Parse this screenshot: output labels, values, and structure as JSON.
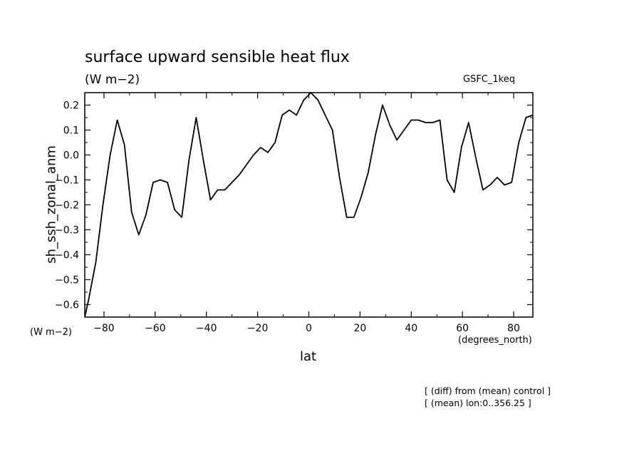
{
  "header": {
    "title": "surface upward sensible heat flux",
    "units": "(W m−2)",
    "run": "GSFC_1keq"
  },
  "axes": {
    "ylabel": "sh_ssh_zonal_anm",
    "xlabel": "lat",
    "y_units": "(W m−2)",
    "x_units": "(degrees_north)"
  },
  "notes": [
    "[ (diff) from (mean) control ]",
    "[ (mean) lon:0..356.25 ]"
  ],
  "chart_data": {
    "type": "line",
    "title": "surface upward sensible heat flux",
    "xlabel": "lat",
    "ylabel": "sh_ssh_zonal_anm",
    "xlim": [
      -87.5,
      87.5
    ],
    "ylim": [
      -0.65,
      0.25
    ],
    "x_ticks": [
      -80,
      -60,
      -40,
      -20,
      0,
      20,
      40,
      60,
      80
    ],
    "x_tick_labels": [
      "−80",
      "−60",
      "−40",
      "−20",
      "0",
      "20",
      "40",
      "60",
      "80"
    ],
    "y_ticks": [
      0.2,
      0.1,
      0.0,
      -0.1,
      -0.2,
      -0.3,
      -0.4,
      -0.5,
      -0.6
    ],
    "y_tick_labels": [
      "0.2",
      "0.1",
      "0.0",
      "−0.1",
      "−0.2",
      "−0.3",
      "−0.4",
      "−0.5",
      "−0.6"
    ],
    "grid": false,
    "line_color": "#000000",
    "series": [
      {
        "x": [
          -87.5,
          -86,
          -83.2,
          -80.4,
          -77.6,
          -74.8,
          -72,
          -69.2,
          -66.4,
          -63.6,
          -60.8,
          -58,
          -55.2,
          -52.4,
          -49.6,
          -46.8,
          -44,
          -41.2,
          -38.4,
          -35.6,
          -32.8,
          -30,
          -27.2,
          -24.4,
          -21.6,
          -18.8,
          -16,
          -13.2,
          -10.4,
          -7.6,
          -4.8,
          -2,
          0.8,
          3.6,
          6.4,
          9.2,
          12,
          14.8,
          17.6,
          20.4,
          23.2,
          26,
          28.8,
          31.6,
          34.4,
          37.2,
          40,
          42.8,
          45.6,
          48.4,
          51.2,
          54,
          56.8,
          59.6,
          62.4,
          65.2,
          68,
          70.8,
          73.6,
          76.4,
          79.2,
          82,
          84.8,
          87.5
        ],
        "y": [
          -0.65,
          -0.58,
          -0.43,
          -0.2,
          0.0,
          0.14,
          0.04,
          -0.23,
          -0.32,
          -0.24,
          -0.11,
          -0.1,
          -0.11,
          -0.22,
          -0.25,
          -0.02,
          0.15,
          -0.02,
          -0.18,
          -0.14,
          -0.14,
          -0.11,
          -0.08,
          -0.04,
          0.0,
          0.03,
          0.01,
          0.05,
          0.16,
          0.18,
          0.16,
          0.22,
          0.25,
          0.22,
          0.16,
          0.1,
          -0.09,
          -0.25,
          -0.25,
          -0.17,
          -0.07,
          0.08,
          0.2,
          0.12,
          0.06,
          0.1,
          0.14,
          0.14,
          0.13,
          0.13,
          0.14,
          -0.1,
          -0.15,
          0.03,
          0.13,
          -0.01,
          -0.14,
          -0.12,
          -0.09,
          -0.12,
          -0.11,
          0.05,
          0.15,
          0.16
        ]
      }
    ]
  }
}
